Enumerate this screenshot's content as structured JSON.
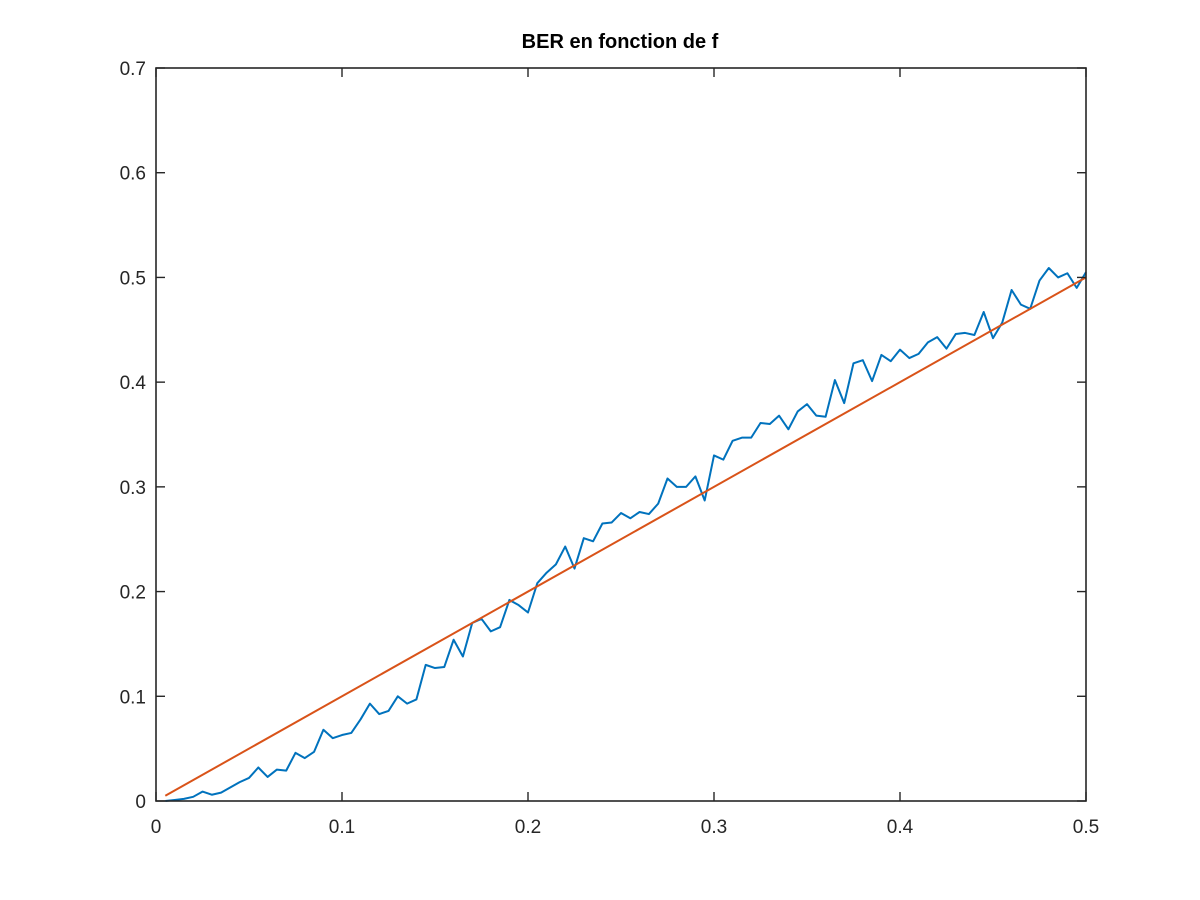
{
  "chart_data": {
    "type": "line",
    "title": "BER en fonction de f",
    "xlabel": "",
    "ylabel": "",
    "xlim": [
      0,
      0.5
    ],
    "ylim": [
      0,
      0.7
    ],
    "x_ticks": [
      0,
      0.1,
      0.2,
      0.3,
      0.4,
      0.5
    ],
    "x_tick_labels": [
      "0",
      "0.1",
      "0.2",
      "0.3",
      "0.4",
      "0.5"
    ],
    "y_ticks": [
      0,
      0.1,
      0.2,
      0.3,
      0.4,
      0.5,
      0.6,
      0.7
    ],
    "y_tick_labels": [
      "0",
      "0.1",
      "0.2",
      "0.3",
      "0.4",
      "0.5",
      "0.6",
      "0.7"
    ],
    "grid": false,
    "box": true,
    "series": [
      {
        "color": "#0072bd",
        "x": [
          0.005,
          0.01,
          0.015,
          0.02,
          0.025,
          0.03,
          0.035,
          0.04,
          0.045,
          0.05,
          0.055,
          0.06,
          0.065,
          0.07,
          0.075,
          0.08,
          0.085,
          0.09,
          0.095,
          0.1,
          0.105,
          0.11,
          0.115,
          0.12,
          0.125,
          0.13,
          0.135,
          0.14,
          0.145,
          0.15,
          0.155,
          0.16,
          0.165,
          0.17,
          0.175,
          0.18,
          0.185,
          0.19,
          0.195,
          0.2,
          0.205,
          0.21,
          0.215,
          0.22,
          0.225,
          0.23,
          0.235,
          0.24,
          0.245,
          0.25,
          0.255,
          0.26,
          0.265,
          0.27,
          0.275,
          0.28,
          0.285,
          0.29,
          0.295,
          0.3,
          0.305,
          0.31,
          0.315,
          0.32,
          0.325,
          0.33,
          0.335,
          0.34,
          0.345,
          0.35,
          0.355,
          0.36,
          0.365,
          0.37,
          0.375,
          0.38,
          0.385,
          0.39,
          0.395,
          0.4,
          0.405,
          0.41,
          0.415,
          0.42,
          0.425,
          0.43,
          0.435,
          0.44,
          0.445,
          0.45,
          0.455,
          0.46,
          0.465,
          0.47,
          0.475,
          0.48,
          0.485,
          0.49,
          0.495,
          0.5
        ],
        "y": [
          0.0,
          0.001,
          0.002,
          0.004,
          0.009,
          0.006,
          0.008,
          0.013,
          0.018,
          0.022,
          0.032,
          0.023,
          0.03,
          0.029,
          0.046,
          0.041,
          0.047,
          0.068,
          0.06,
          0.063,
          0.065,
          0.078,
          0.093,
          0.083,
          0.086,
          0.1,
          0.093,
          0.097,
          0.13,
          0.127,
          0.128,
          0.154,
          0.138,
          0.17,
          0.174,
          0.162,
          0.166,
          0.192,
          0.187,
          0.18,
          0.208,
          0.218,
          0.226,
          0.243,
          0.222,
          0.251,
          0.248,
          0.265,
          0.266,
          0.275,
          0.27,
          0.276,
          0.274,
          0.284,
          0.308,
          0.3,
          0.3,
          0.31,
          0.287,
          0.33,
          0.326,
          0.344,
          0.347,
          0.347,
          0.361,
          0.36,
          0.368,
          0.355,
          0.372,
          0.379,
          0.368,
          0.367,
          0.402,
          0.38,
          0.418,
          0.421,
          0.401,
          0.426,
          0.42,
          0.431,
          0.423,
          0.427,
          0.438,
          0.443,
          0.432,
          0.446,
          0.447,
          0.445,
          0.467,
          0.442,
          0.457,
          0.488,
          0.474,
          0.47,
          0.497,
          0.509,
          0.5,
          0.504,
          0.49,
          0.505
        ]
      },
      {
        "color": "#d95319",
        "x": [
          0.005,
          0.5
        ],
        "y": [
          0.005,
          0.5
        ]
      }
    ]
  }
}
